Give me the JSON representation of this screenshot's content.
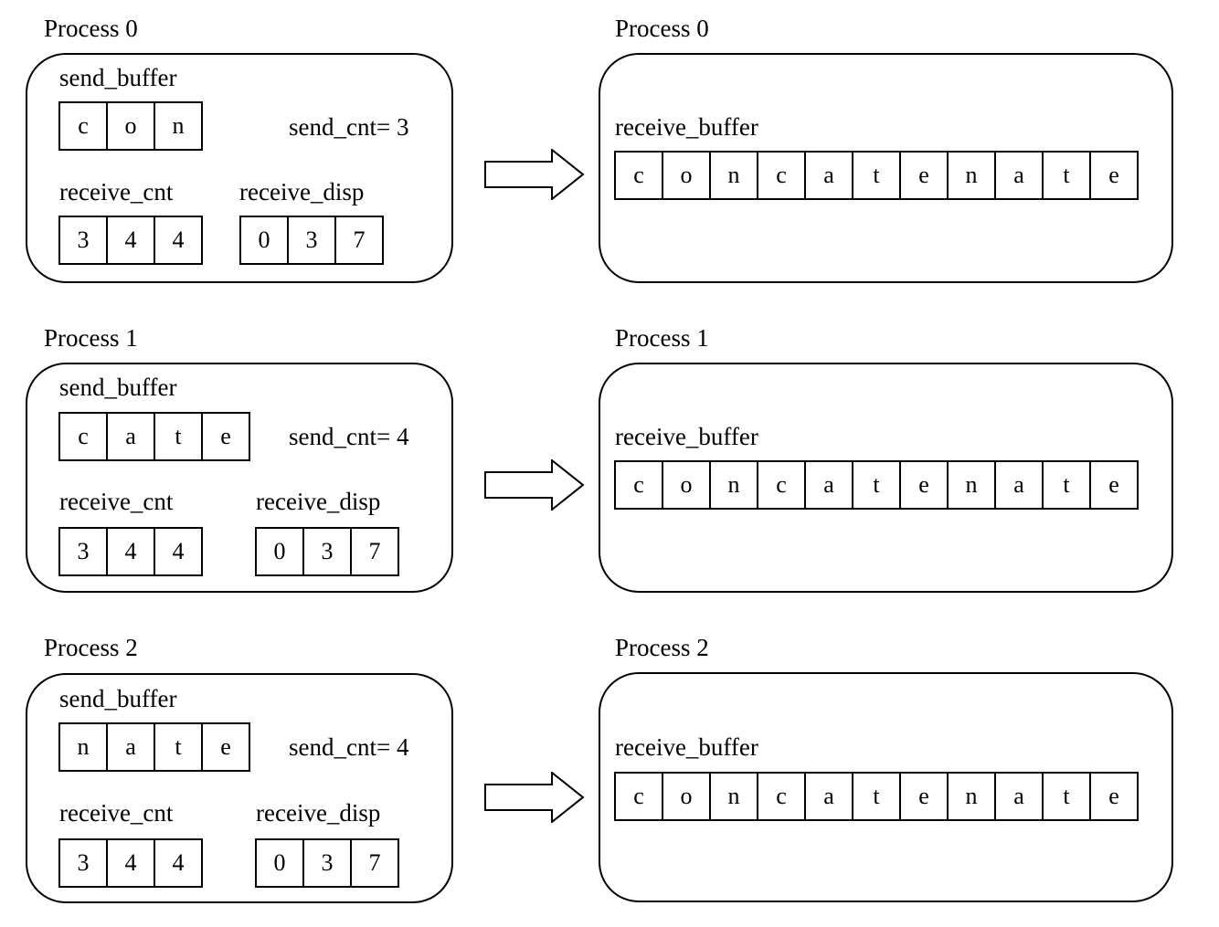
{
  "processes": [
    {
      "title": "Process 0",
      "send_buffer_label": "send_buffer",
      "send_buffer": [
        "c",
        "o",
        "n"
      ],
      "send_cnt_label": "send_cnt= 3",
      "receive_cnt_label": "receive_cnt",
      "receive_cnt": [
        "3",
        "4",
        "4"
      ],
      "receive_disp_label": "receive_disp",
      "receive_disp": [
        "0",
        "3",
        "7"
      ],
      "out_title": "Process 0",
      "receive_buffer_label": "receive_buffer",
      "receive_buffer": [
        "c",
        "o",
        "n",
        "c",
        "a",
        "t",
        "e",
        "n",
        "a",
        "t",
        "e"
      ]
    },
    {
      "title": "Process 1",
      "send_buffer_label": "send_buffer",
      "send_buffer": [
        "c",
        "a",
        "t",
        "e"
      ],
      "send_cnt_label": "send_cnt= 4",
      "receive_cnt_label": "receive_cnt",
      "receive_cnt": [
        "3",
        "4",
        "4"
      ],
      "receive_disp_label": "receive_disp",
      "receive_disp": [
        "0",
        "3",
        "7"
      ],
      "out_title": "Process 1",
      "receive_buffer_label": "receive_buffer",
      "receive_buffer": [
        "c",
        "o",
        "n",
        "c",
        "a",
        "t",
        "e",
        "n",
        "a",
        "t",
        "e"
      ]
    },
    {
      "title": "Process 2",
      "send_buffer_label": "send_buffer",
      "send_buffer": [
        "n",
        "a",
        "t",
        "e"
      ],
      "send_cnt_label": "send_cnt= 4",
      "receive_cnt_label": "receive_cnt",
      "receive_cnt": [
        "3",
        "4",
        "4"
      ],
      "receive_disp_label": "receive_disp",
      "receive_disp": [
        "0",
        "3",
        "7"
      ],
      "out_title": "Process 2",
      "receive_buffer_label": "receive_buffer",
      "receive_buffer": [
        "c",
        "o",
        "n",
        "c",
        "a",
        "t",
        "e",
        "n",
        "a",
        "t",
        "e"
      ]
    }
  ]
}
